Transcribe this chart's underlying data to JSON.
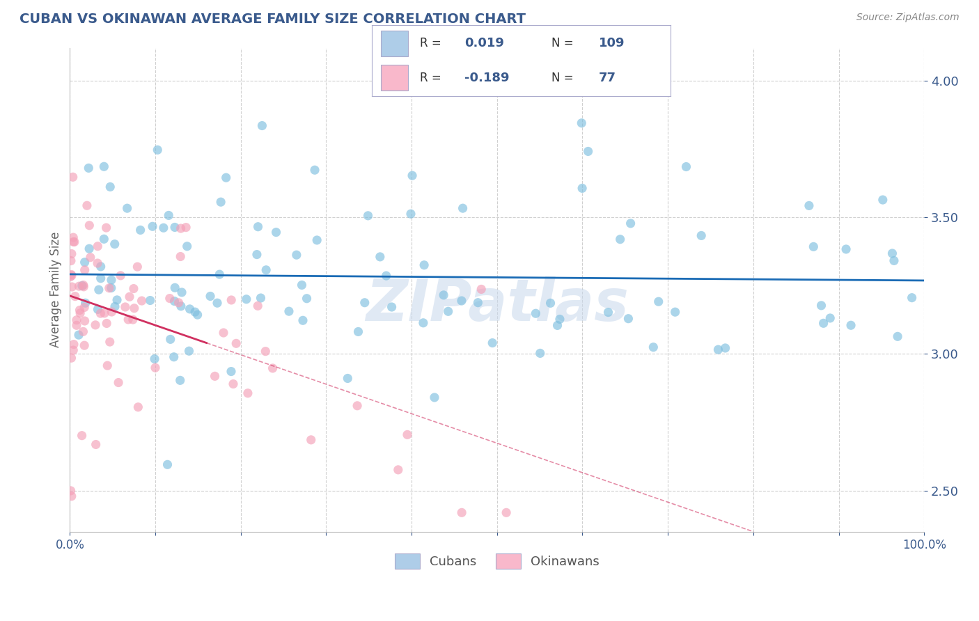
{
  "title": "CUBAN VS OKINAWAN AVERAGE FAMILY SIZE CORRELATION CHART",
  "source_text": "Source: ZipAtlas.com",
  "ylabel": "Average Family Size",
  "xlim": [
    0.0,
    1.0
  ],
  "ylim": [
    2.35,
    4.12
  ],
  "yticks": [
    2.5,
    3.0,
    3.5,
    4.0
  ],
  "xtick_positions": [
    0.0,
    0.1,
    0.2,
    0.3,
    0.4,
    0.5,
    0.6,
    0.7,
    0.8,
    0.9,
    1.0
  ],
  "xtick_labels": [
    "0.0%",
    "",
    "",
    "",
    "",
    "",
    "",
    "",
    "",
    "",
    "100.0%"
  ],
  "watermark": "ZIPatlas",
  "blue_color": "#7fbfdf",
  "pink_color": "#f4a0b8",
  "title_color": "#3a5a8c",
  "axis_color": "#3a5a8c",
  "trend_blue_color": "#1a6bb5",
  "trend_pink_color": "#d03060",
  "grid_color": "#d0d0d0",
  "background_color": "#ffffff",
  "legend_box_color": "#f0f4ff",
  "legend_border_color": "#aaaacc"
}
